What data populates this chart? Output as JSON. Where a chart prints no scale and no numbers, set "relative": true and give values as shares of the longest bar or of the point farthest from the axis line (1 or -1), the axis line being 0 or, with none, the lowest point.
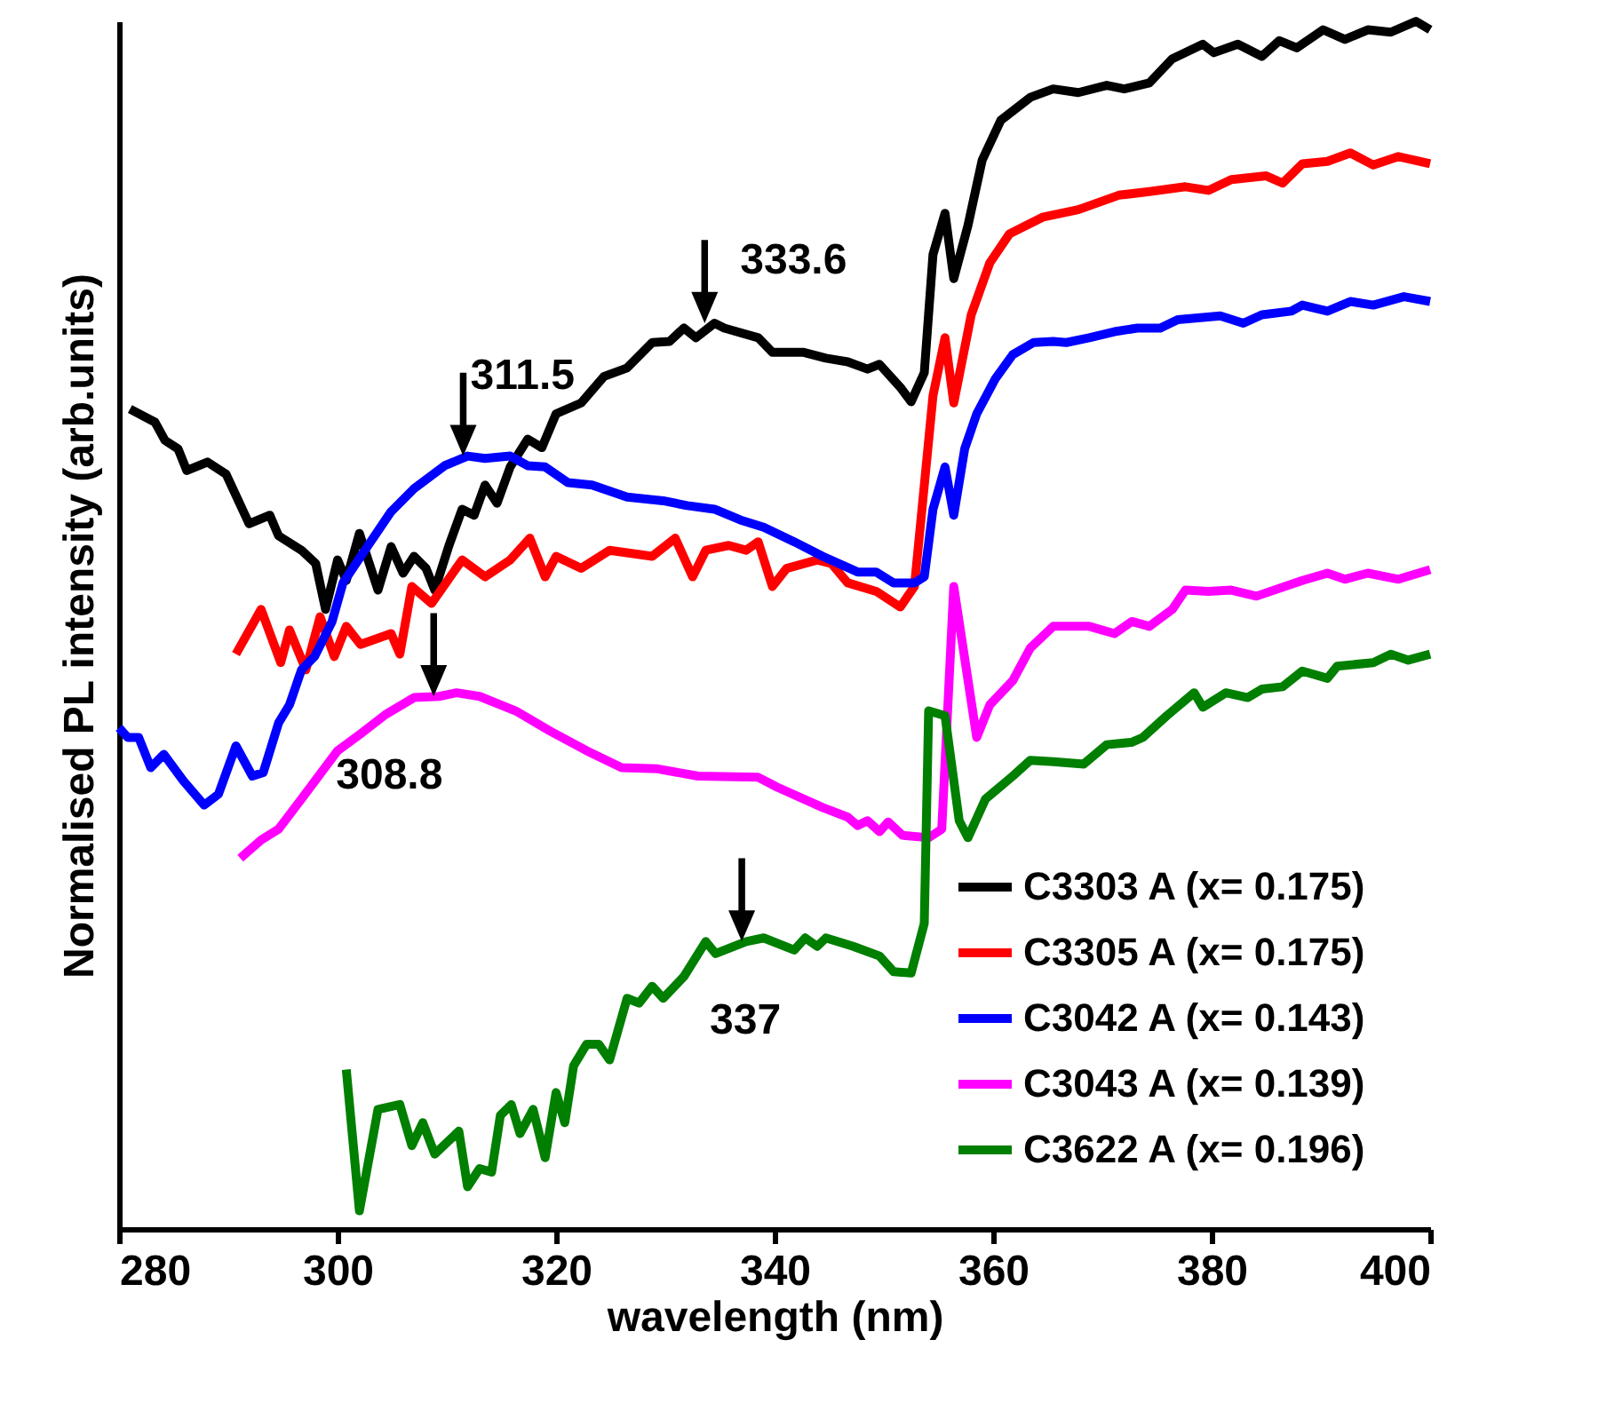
{
  "chart_data": {
    "type": "line",
    "relative": true,
    "xlabel": "wavelength (nm)",
    "ylabel": "Normalised  PL intensity (arb.units)",
    "xlim": [
      280,
      400
    ],
    "xticks": [
      280,
      300,
      320,
      340,
      360,
      380,
      400
    ],
    "grid": false,
    "legend": "bottom right",
    "line_style": "solid",
    "marker": "none",
    "series": [
      {
        "name": "C3303 A (x= 0.175)",
        "color": "#000000",
        "x": [
          281.0,
          283.3,
          284.2,
          285.4,
          286.2,
          288.1,
          289.8,
          291.9,
          293.8,
          294.6,
          296.7,
          298.0,
          298.9,
          300.0,
          300.8,
          302.0,
          303.7,
          304.9,
          306.0,
          307.0,
          308.1,
          308.9,
          310.2,
          311.4,
          312.5,
          313.5,
          314.6,
          315.8,
          317.4,
          318.7,
          320.0,
          322.3,
          324.4,
          326.5,
          328.8,
          330.4,
          331.7,
          332.8,
          334.5,
          335.4,
          338.5,
          339.8,
          342.6,
          344.7,
          346.7,
          348.5,
          349.6,
          351.5,
          352.5,
          353.7,
          354.5,
          355.6,
          356.4,
          357.7,
          359.0,
          360.7,
          363.4,
          365.5,
          367.8,
          370.4,
          372.0,
          374.3,
          376.4,
          379.2,
          380.2,
          382.4,
          384.6,
          386.2,
          387.8,
          390.2,
          392.2,
          394.3,
          396.4,
          398.7,
          400.0
        ],
        "values": [
          0.679,
          0.668,
          0.653,
          0.646,
          0.628,
          0.635,
          0.625,
          0.584,
          0.591,
          0.574,
          0.562,
          0.551,
          0.513,
          0.554,
          0.537,
          0.576,
          0.529,
          0.565,
          0.543,
          0.557,
          0.547,
          0.529,
          0.566,
          0.596,
          0.591,
          0.616,
          0.601,
          0.631,
          0.654,
          0.647,
          0.675,
          0.684,
          0.706,
          0.713,
          0.734,
          0.735,
          0.746,
          0.738,
          0.75,
          0.746,
          0.738,
          0.726,
          0.726,
          0.721,
          0.718,
          0.712,
          0.716,
          0.697,
          0.685,
          0.709,
          0.807,
          0.841,
          0.787,
          0.831,
          0.885,
          0.918,
          0.937,
          0.944,
          0.941,
          0.947,
          0.944,
          0.949,
          0.969,
          0.981,
          0.974,
          0.981,
          0.971,
          0.984,
          0.978,
          0.993,
          0.985,
          0.993,
          0.991,
          1.0,
          0.993
        ]
      },
      {
        "name": "C3305 A (x= 0.175)",
        "color": "#ff0000",
        "x": [
          290.7,
          293.0,
          294.8,
          295.6,
          297.1,
          298.4,
          299.7,
          300.8,
          302.1,
          304.9,
          305.7,
          306.8,
          308.6,
          311.4,
          313.5,
          315.8,
          317.6,
          319.0,
          320.0,
          322.3,
          324.9,
          328.8,
          330.9,
          332.5,
          333.7,
          335.8,
          337.4,
          338.5,
          339.8,
          341.1,
          343.9,
          345.2,
          346.7,
          349.3,
          351.5,
          352.8,
          354.5,
          355.6,
          356.4,
          358.0,
          359.7,
          361.5,
          364.6,
          367.8,
          371.5,
          374.3,
          377.6,
          379.7,
          381.8,
          385.0,
          386.5,
          388.3,
          390.6,
          392.7,
          394.8,
          397.1,
          400.0
        ],
        "values": [
          0.476,
          0.513,
          0.469,
          0.496,
          0.463,
          0.507,
          0.474,
          0.499,
          0.484,
          0.493,
          0.476,
          0.532,
          0.518,
          0.554,
          0.54,
          0.554,
          0.572,
          0.54,
          0.557,
          0.547,
          0.562,
          0.557,
          0.572,
          0.54,
          0.562,
          0.566,
          0.562,
          0.569,
          0.532,
          0.547,
          0.554,
          0.551,
          0.535,
          0.528,
          0.515,
          0.532,
          0.69,
          0.738,
          0.684,
          0.757,
          0.8,
          0.824,
          0.838,
          0.844,
          0.856,
          0.859,
          0.863,
          0.86,
          0.869,
          0.872,
          0.866,
          0.882,
          0.884,
          0.891,
          0.881,
          0.888,
          0.882
        ]
      },
      {
        "name": "C3042 A (x= 0.143)",
        "color": "#0000ff",
        "x": [
          280.0,
          280.8,
          281.8,
          282.9,
          284.1,
          285.9,
          287.8,
          289.1,
          290.7,
          292.2,
          293.2,
          294.6,
          295.6,
          296.7,
          297.9,
          299.5,
          300.5,
          302.8,
          304.9,
          307.0,
          309.8,
          311.9,
          313.5,
          315.8,
          317.4,
          319.0,
          321.1,
          323.3,
          326.5,
          329.8,
          332.0,
          334.5,
          336.9,
          339.0,
          341.8,
          344.4,
          347.6,
          349.3,
          350.9,
          352.8,
          353.7,
          354.5,
          355.6,
          356.4,
          357.4,
          358.5,
          360.2,
          361.8,
          363.7,
          365.5,
          366.7,
          368.8,
          371.1,
          373.2,
          375.3,
          376.9,
          380.8,
          382.9,
          384.6,
          387.3,
          388.3,
          390.6,
          392.7,
          394.8,
          397.6,
          400.0
        ],
        "values": [
          0.415,
          0.407,
          0.407,
          0.382,
          0.393,
          0.371,
          0.351,
          0.36,
          0.4,
          0.375,
          0.378,
          0.419,
          0.434,
          0.463,
          0.474,
          0.503,
          0.535,
          0.566,
          0.594,
          0.613,
          0.632,
          0.64,
          0.638,
          0.64,
          0.632,
          0.631,
          0.618,
          0.616,
          0.606,
          0.603,
          0.599,
          0.596,
          0.587,
          0.581,
          0.569,
          0.557,
          0.544,
          0.544,
          0.535,
          0.535,
          0.54,
          0.596,
          0.631,
          0.591,
          0.646,
          0.675,
          0.704,
          0.724,
          0.734,
          0.735,
          0.734,
          0.738,
          0.743,
          0.746,
          0.746,
          0.753,
          0.756,
          0.75,
          0.757,
          0.76,
          0.765,
          0.76,
          0.768,
          0.765,
          0.772,
          0.768
        ]
      },
      {
        "name": "C3043 A (x= 0.139)",
        "color": "#ff00ff",
        "x": [
          291.1,
          293.0,
          294.6,
          296.7,
          300.0,
          302.1,
          304.4,
          307.0,
          309.3,
          310.9,
          313.0,
          316.3,
          319.5,
          322.8,
          326.0,
          329.3,
          333.0,
          338.5,
          340.2,
          344.4,
          346.7,
          347.6,
          348.5,
          349.6,
          350.4,
          351.7,
          354.1,
          355.3,
          356.4,
          358.5,
          359.7,
          361.8,
          363.4,
          365.5,
          368.8,
          371.1,
          372.7,
          374.3,
          376.4,
          377.6,
          379.7,
          381.8,
          384.1,
          388.3,
          390.6,
          392.2,
          394.3,
          397.1,
          400.0
        ],
        "values": [
          0.307,
          0.322,
          0.331,
          0.356,
          0.396,
          0.41,
          0.426,
          0.44,
          0.441,
          0.444,
          0.441,
          0.429,
          0.412,
          0.396,
          0.382,
          0.381,
          0.375,
          0.374,
          0.366,
          0.349,
          0.341,
          0.334,
          0.338,
          0.329,
          0.337,
          0.326,
          0.324,
          0.331,
          0.532,
          0.407,
          0.434,
          0.454,
          0.481,
          0.499,
          0.499,
          0.493,
          0.503,
          0.499,
          0.513,
          0.529,
          0.528,
          0.529,
          0.524,
          0.537,
          0.543,
          0.538,
          0.543,
          0.538,
          0.546
        ]
      },
      {
        "name": "C3622 A (x= 0.196)",
        "color": "#007f00",
        "x": [
          300.8,
          302.0,
          303.7,
          305.7,
          306.8,
          307.8,
          308.9,
          311.1,
          311.9,
          313.0,
          314.1,
          314.9,
          315.9,
          316.7,
          317.9,
          319.0,
          320.0,
          320.8,
          321.6,
          322.8,
          323.9,
          324.9,
          326.5,
          327.6,
          328.8,
          329.8,
          331.7,
          333.7,
          334.6,
          337.4,
          339.0,
          341.8,
          342.8,
          343.9,
          344.7,
          347.2,
          349.6,
          350.9,
          352.5,
          353.7,
          354.1,
          355.6,
          356.9,
          357.7,
          359.3,
          361.8,
          363.4,
          365.5,
          368.3,
          370.4,
          372.7,
          373.7,
          375.9,
          378.4,
          379.2,
          381.3,
          383.3,
          384.6,
          386.5,
          388.3,
          390.6,
          391.5,
          394.8,
          396.4,
          398.0,
          400.0
        ],
        "values": [
          0.132,
          0.015,
          0.099,
          0.103,
          0.069,
          0.088,
          0.062,
          0.081,
          0.035,
          0.05,
          0.047,
          0.094,
          0.103,
          0.079,
          0.099,
          0.059,
          0.113,
          0.088,
          0.135,
          0.153,
          0.153,
          0.14,
          0.191,
          0.187,
          0.201,
          0.191,
          0.209,
          0.238,
          0.228,
          0.238,
          0.241,
          0.231,
          0.241,
          0.234,
          0.241,
          0.234,
          0.226,
          0.213,
          0.212,
          0.253,
          0.429,
          0.425,
          0.338,
          0.324,
          0.356,
          0.375,
          0.388,
          0.387,
          0.385,
          0.401,
          0.403,
          0.407,
          0.425,
          0.444,
          0.432,
          0.444,
          0.44,
          0.447,
          0.449,
          0.462,
          0.456,
          0.466,
          0.469,
          0.476,
          0.471,
          0.476
        ]
      }
    ],
    "annotations": [
      {
        "text": "333.6",
        "x": 333.6,
        "y": 0.75
      },
      {
        "text": "311.5",
        "x": 311.5,
        "y": 0.64
      },
      {
        "text": "308.8",
        "x": 308.8,
        "y": 0.441
      },
      {
        "text": "337",
        "x": 337,
        "y": 0.238
      }
    ]
  }
}
